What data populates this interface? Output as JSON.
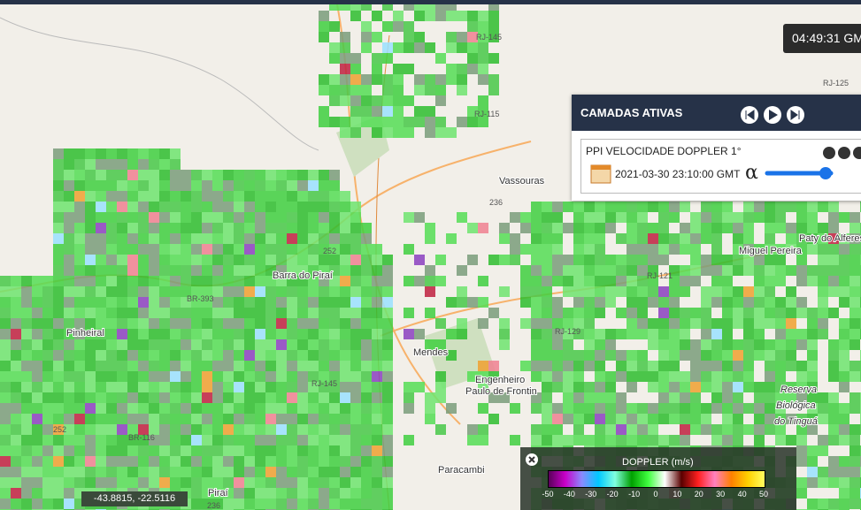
{
  "clock": "04:49:31 GM",
  "panel": {
    "title": "CAMADAS ATIVAS",
    "layer": {
      "name": "PPI VELOCIDADE DOPPLER 1°",
      "time": "2021-03-30 23:10:00 GMT",
      "alpha": "α"
    }
  },
  "legend": {
    "title": "DOPPLER (m/s)",
    "ticks": [
      -50,
      -40,
      -30,
      -20,
      -10,
      0,
      10,
      20,
      30,
      40,
      50
    ]
  },
  "coordinates": "-43.8815, -22.5116",
  "places": [
    "Vassouras",
    "Barra do Piraí",
    "Pinheiral",
    "Mendes",
    "Engenheiro",
    "Paulo de Frontin",
    "Paracambi",
    "Miguel Pereira",
    "Paty do Alferes",
    "Reserva",
    "Biológica",
    "do Tinguá",
    "Piraí"
  ],
  "roads": [
    "RJ-145",
    "RJ-115",
    "RJ-125",
    "RJ-121",
    "RJ-129",
    "BR-393",
    "BR-116",
    "252",
    "236",
    "RJ-145",
    "252",
    "236"
  ]
}
